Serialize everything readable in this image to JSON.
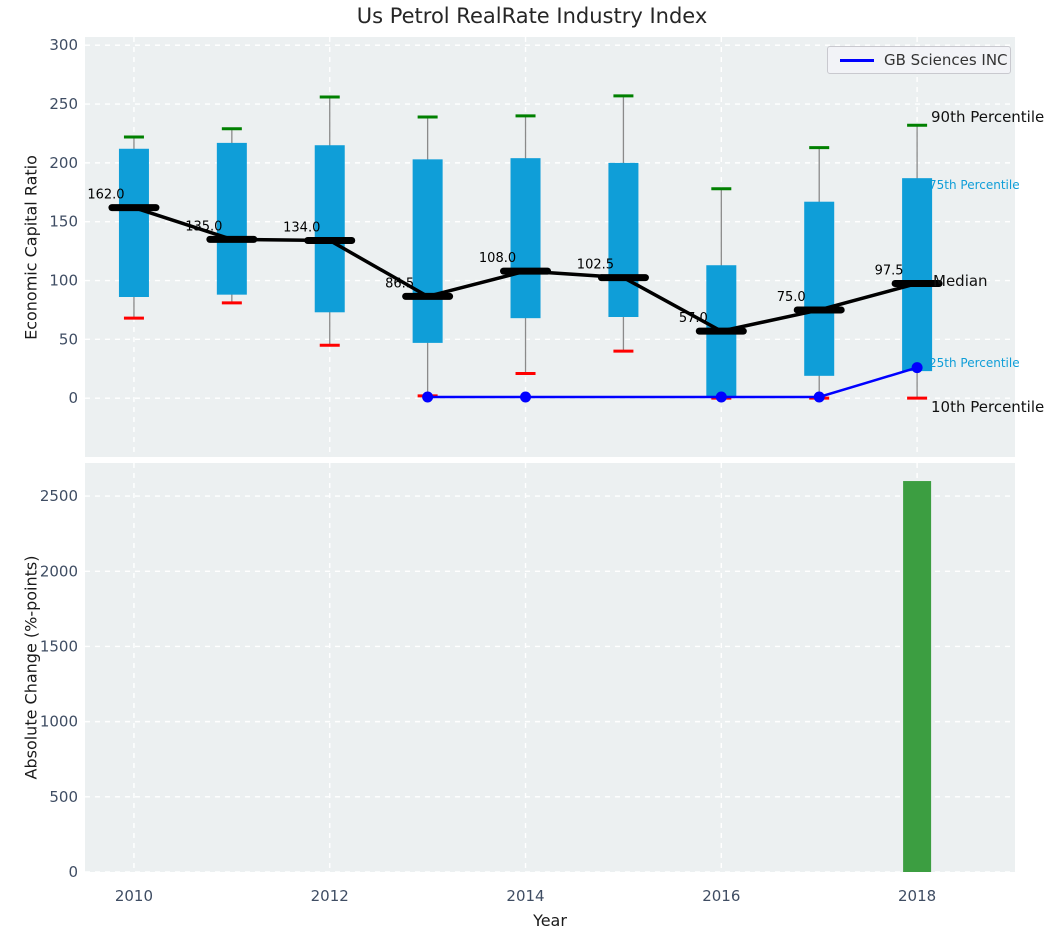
{
  "title": "Us Petrol RealRate Industry Index",
  "legend": {
    "label": "GB Sciences INC"
  },
  "annotations": {
    "p90": "90th Percentile",
    "p75": "75th Percentile",
    "median": "Median",
    "p25": "25th Percentile",
    "p10": "10th Percentile"
  },
  "colors": {
    "box_fill": "#0f9ed8",
    "whisker": "#8a8a8a",
    "p90_cap": "#008000",
    "p10_cap": "#ff0000",
    "median_line": "#000000",
    "company_line": "#0000ff",
    "bar_fill": "#3c9e41",
    "plot_background": "#ecf0f1",
    "gridline": "#ffffff",
    "tick_label": "#3f4d63",
    "text_dark": "#1a1a1a",
    "annotation_accent": "#0f9ed8"
  },
  "chart_data": [
    {
      "type": "boxplot",
      "title": "Us Petrol RealRate Industry Index",
      "ylabel": "Economic Capital Ratio",
      "ylim": [
        -50,
        307
      ],
      "yticks": [
        0,
        50,
        100,
        150,
        200,
        250,
        300
      ],
      "xlim": [
        2009.5,
        2019.0
      ],
      "xticks": [
        2010,
        2012,
        2014,
        2016,
        2018
      ],
      "years": [
        2010,
        2011,
        2012,
        2013,
        2014,
        2015,
        2016,
        2017,
        2018
      ],
      "series": [
        {
          "name": "90th Percentile",
          "values": [
            222,
            229,
            256,
            239,
            240,
            257,
            178,
            213,
            232
          ]
        },
        {
          "name": "75th Percentile",
          "values": [
            212,
            217,
            215,
            203,
            204,
            200,
            113,
            167,
            187
          ]
        },
        {
          "name": "Median",
          "values": [
            162.0,
            135.0,
            134.0,
            86.5,
            108.0,
            102.5,
            57.0,
            75.0,
            97.5
          ]
        },
        {
          "name": "25th Percentile",
          "values": [
            86,
            88,
            73,
            47,
            68,
            69,
            1,
            19,
            23
          ]
        },
        {
          "name": "10th Percentile",
          "values": [
            68,
            81,
            45,
            2,
            21,
            40,
            0,
            0,
            0
          ]
        }
      ],
      "median_labels": [
        "162.0",
        "135.0",
        "134.0",
        "86.5",
        "108.0",
        "102.5",
        "57.0",
        "75.0",
        "97.5"
      ],
      "company_line": {
        "name": "GB Sciences INC",
        "x": [
          2013,
          2014,
          2016,
          2017,
          2018
        ],
        "y": [
          1,
          1,
          1,
          1,
          26
        ]
      },
      "legend_position": "upper right",
      "grid": true
    },
    {
      "type": "bar",
      "ylabel": "Absolute Change (%-points)",
      "xlabel": "Year",
      "ylim": [
        0,
        2720
      ],
      "yticks": [
        0,
        500,
        1000,
        1500,
        2000,
        2500
      ],
      "xlim": [
        2009.5,
        2019.0
      ],
      "xticks": [
        2010,
        2012,
        2014,
        2016,
        2018
      ],
      "x": [
        2018
      ],
      "values": [
        2600
      ],
      "grid": true
    }
  ]
}
